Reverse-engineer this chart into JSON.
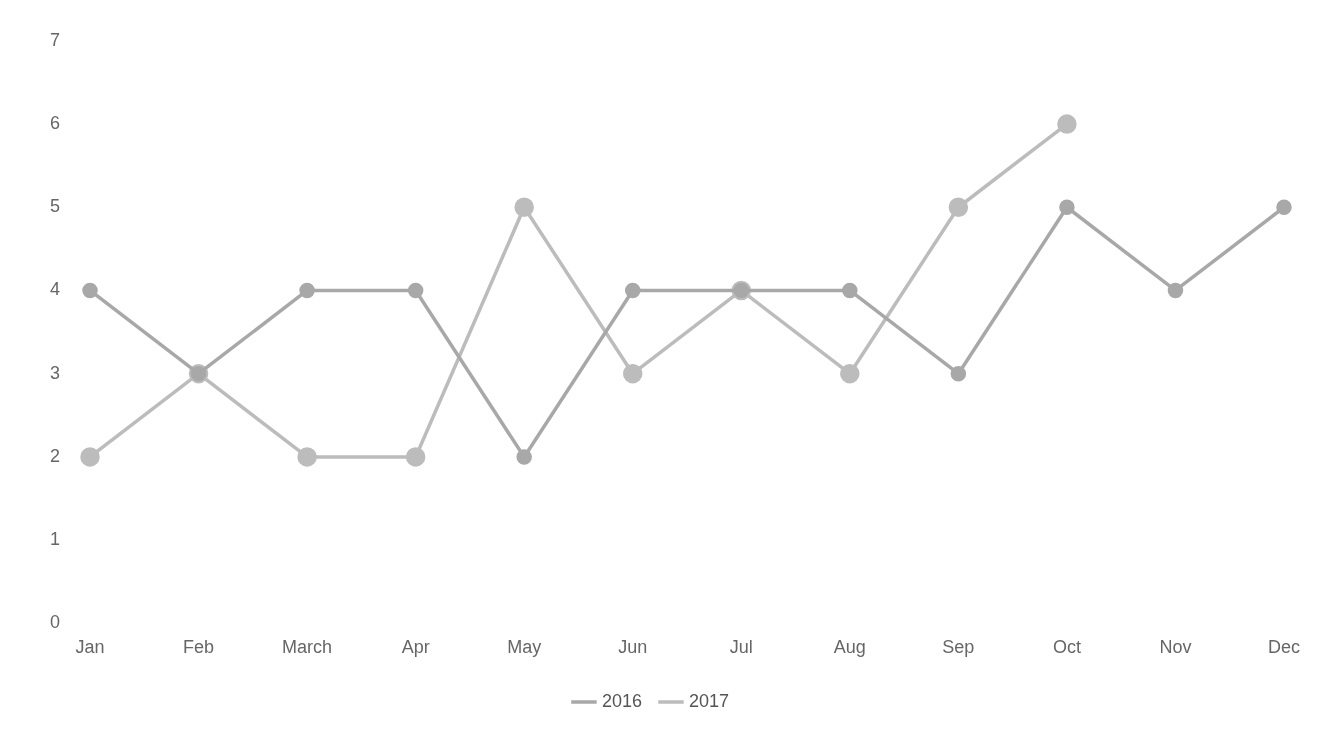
{
  "chart_data": {
    "type": "line",
    "categories": [
      "Jan",
      "Feb",
      "March",
      "Apr",
      "May",
      "Jun",
      "Jul",
      "Aug",
      "Sep",
      "Oct",
      "Nov",
      "Dec"
    ],
    "series": [
      {
        "name": "2016",
        "color": "#a8a8a8",
        "values": [
          4,
          3,
          4,
          4,
          2,
          4,
          4,
          4,
          3,
          5,
          4,
          5
        ]
      },
      {
        "name": "2017",
        "color": "#bcbcbc",
        "values": [
          2,
          3,
          2,
          2,
          5,
          3,
          4,
          3,
          5,
          6,
          null,
          null
        ]
      }
    ],
    "ylim": [
      0,
      7
    ],
    "yticks": [
      0,
      1,
      2,
      3,
      4,
      5,
      6,
      7
    ],
    "grid": false,
    "legend": "bottom",
    "marker": "circle",
    "line_style": "solid"
  }
}
